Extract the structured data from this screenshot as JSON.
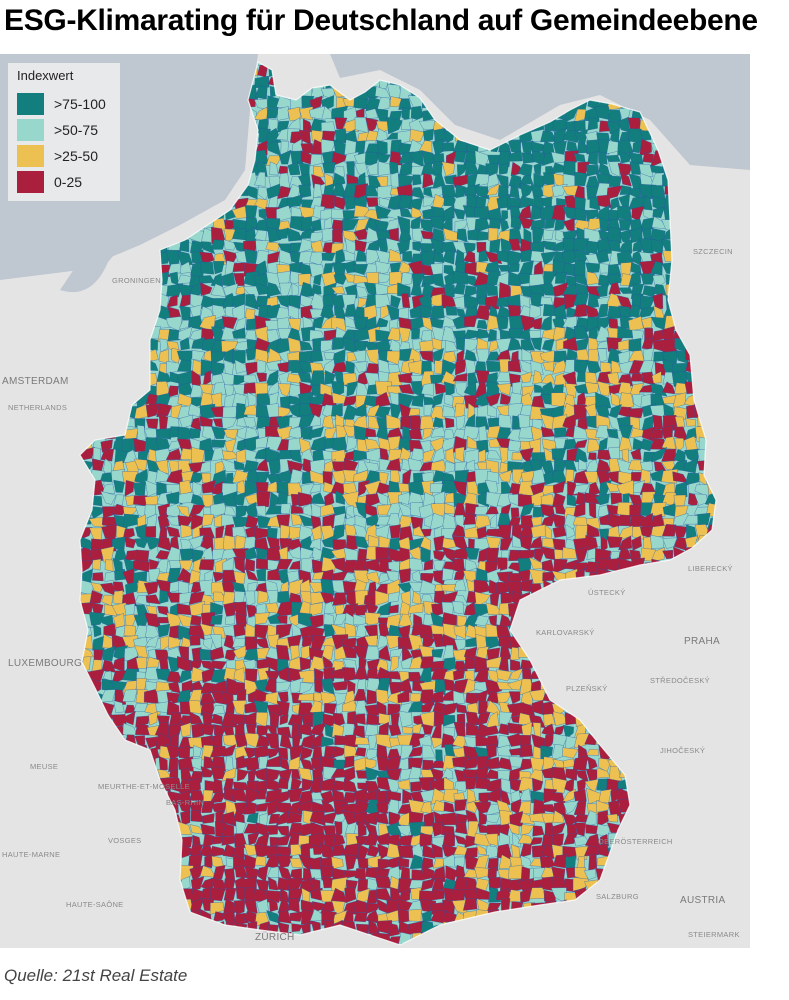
{
  "title": "ESG-Klimarating für Deutschland auf Gemeindeebene",
  "legend": {
    "title": "Indexwert",
    "items": [
      {
        "label": ">75-100",
        "color": "#137e7e"
      },
      {
        "label": ">50-75",
        "color": "#98d8cc"
      },
      {
        "label": ">25-50",
        "color": "#ecc152"
      },
      {
        "label": "0-25",
        "color": "#aa1f3e"
      }
    ]
  },
  "colors": {
    "teal": "#137e7e",
    "light_teal": "#98d8cc",
    "yellow": "#ecc152",
    "red": "#aa1f3e",
    "blue": "#2656a6",
    "water": "#bfc7d1",
    "land": "#e4e4e4"
  },
  "places": {
    "szczecin": "SZCZECIN",
    "amsterdam": "AMSTERDAM",
    "netherlands": "NETHERLANDS",
    "luxembourg": "LUXEMBOURG",
    "praha": "PRAHA",
    "zurich": "ZÜRICH",
    "salzburg": "SALZBURG",
    "austria": "AUSTRIA",
    "karlovarsky": "KARLOVARSKÝ",
    "plzensky": "PLZEŇSKÝ",
    "stredocesky": "STŘEDOČESKÝ",
    "jihocesky": "JIHOČESKÝ",
    "liberecky": "LIBERECKÝ",
    "ustecky": "ÚSTECKÝ",
    "vosges": "VOSGES",
    "bas_rhin": "BAS-RHIN",
    "haute_marne": "HAUTE-MARNE",
    "haute_saone": "HAUTE-SAÔNE",
    "meurthe_moselle": "MEURTHE-ET-MOSELLE",
    "meuse": "MEUSE",
    "groningen": "GRONINGEN",
    "oberosterreich": "OBERÖSTERREICH",
    "steiermark": "STEIERMARK"
  },
  "source": "Quelle: 21st Real Estate"
}
